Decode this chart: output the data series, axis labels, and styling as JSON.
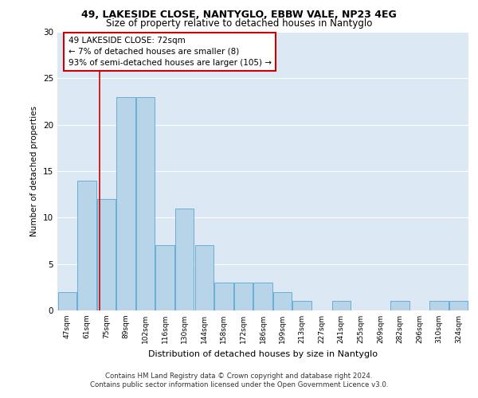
{
  "title_line1": "49, LAKESIDE CLOSE, NANTYGLO, EBBW VALE, NP23 4EG",
  "title_line2": "Size of property relative to detached houses in Nantyglo",
  "xlabel": "Distribution of detached houses by size in Nantyglo",
  "ylabel": "Number of detached properties",
  "categories": [
    "47sqm",
    "61sqm",
    "75sqm",
    "89sqm",
    "102sqm",
    "116sqm",
    "130sqm",
    "144sqm",
    "158sqm",
    "172sqm",
    "186sqm",
    "199sqm",
    "213sqm",
    "227sqm",
    "241sqm",
    "255sqm",
    "269sqm",
    "282sqm",
    "296sqm",
    "310sqm",
    "324sqm"
  ],
  "values": [
    2,
    14,
    12,
    23,
    23,
    7,
    11,
    7,
    3,
    3,
    3,
    2,
    1,
    0,
    1,
    0,
    0,
    1,
    0,
    1,
    1
  ],
  "bar_color": "#b8d4e8",
  "bar_edgecolor": "#6aaed6",
  "vline_x": 1.65,
  "vline_color": "#cc0000",
  "annotation_text": "49 LAKESIDE CLOSE: 72sqm\n← 7% of detached houses are smaller (8)\n93% of semi-detached houses are larger (105) →",
  "annotation_box_color": "#ffffff",
  "annotation_box_edgecolor": "#cc0000",
  "ylim": [
    0,
    30
  ],
  "yticks": [
    0,
    5,
    10,
    15,
    20,
    25,
    30
  ],
  "footer_text": "Contains HM Land Registry data © Crown copyright and database right 2024.\nContains public sector information licensed under the Open Government Licence v3.0.",
  "bg_color": "#dce9f5",
  "plot_bg_color": "#dce9f5"
}
